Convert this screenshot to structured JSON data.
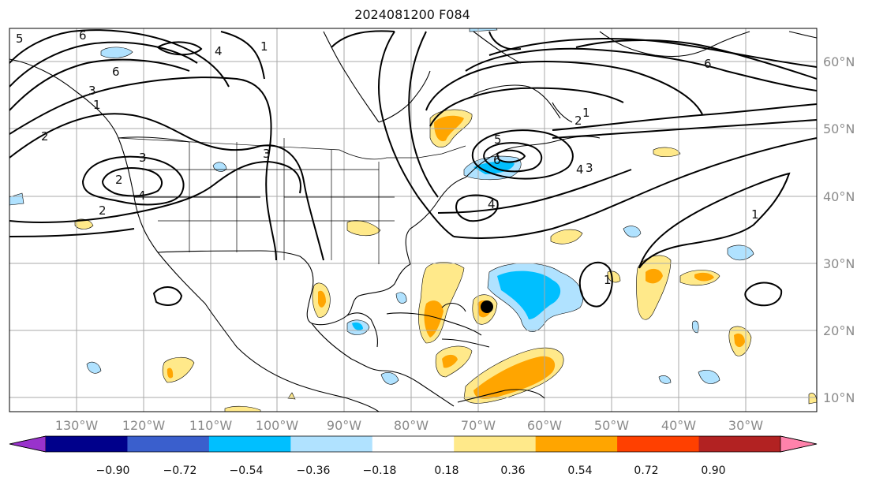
{
  "title": "2024081200 F084",
  "longitude_labels": [
    "130°W",
    "120°W",
    "110°W",
    "100°W",
    "90°W",
    "80°W",
    "70°W",
    "60°W",
    "50°W",
    "40°W",
    "30°W"
  ],
  "latitude_labels": [
    "60°N",
    "50°N",
    "40°N",
    "30°N",
    "20°N",
    "10°N"
  ],
  "colorbar": {
    "ticks": [
      "−0.90",
      "−0.72",
      "−0.54",
      "−0.36",
      "−0.18",
      "0.18",
      "0.36",
      "0.54",
      "0.72",
      "0.90"
    ],
    "colors": [
      "#9932cc",
      "#00008b",
      "#3a5fcd",
      "#00bfff",
      "#b0e2ff",
      "#ffffff",
      "#ffe98a",
      "#ffa500",
      "#ff4000",
      "#b22222",
      "#ff82ab"
    ]
  },
  "contour_labels": [
    "6",
    "5",
    "6",
    "3",
    "1",
    "2",
    "3",
    "2",
    "4",
    "2",
    "1",
    "3",
    "4",
    "1",
    "2",
    "5",
    "6",
    "4",
    "4",
    "3",
    "6",
    "1",
    "1"
  ],
  "fill_colors": {
    "light_blue": "#b0e2ff",
    "blue": "#00bfff",
    "yellow": "#ffe98a",
    "orange": "#ffa500"
  }
}
